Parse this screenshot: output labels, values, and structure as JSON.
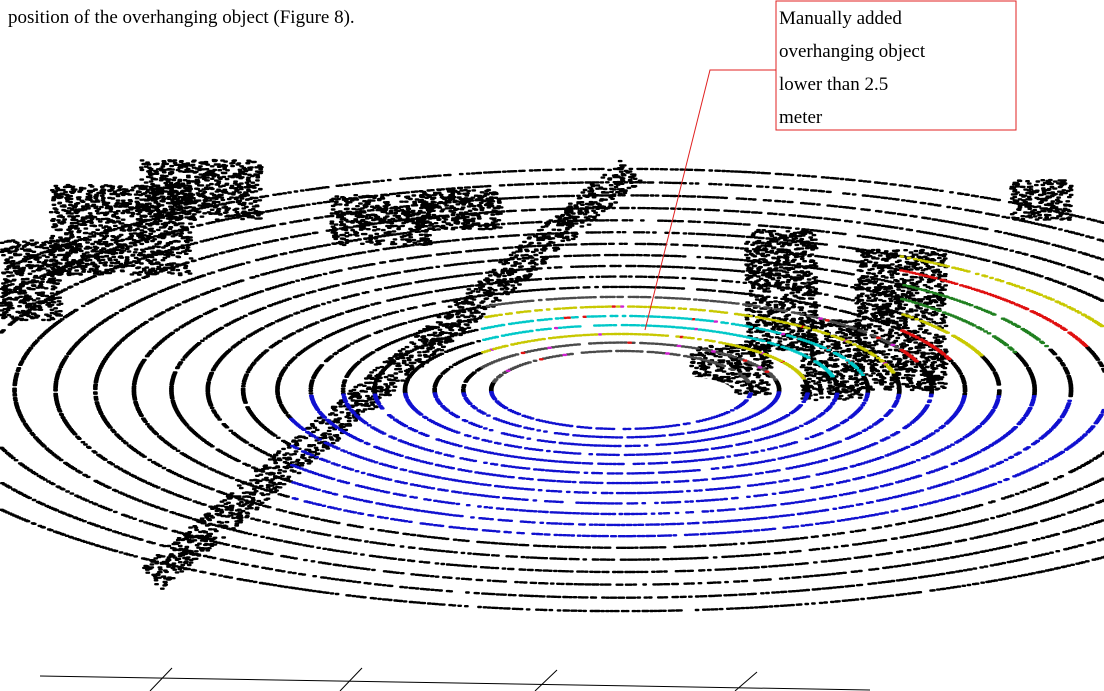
{
  "body_text": "position of the overhanging object (Figure 8).",
  "annotation": {
    "lines": [
      "Manually added",
      "overhanging object",
      "lower than 2.5",
      "meter"
    ]
  }
}
